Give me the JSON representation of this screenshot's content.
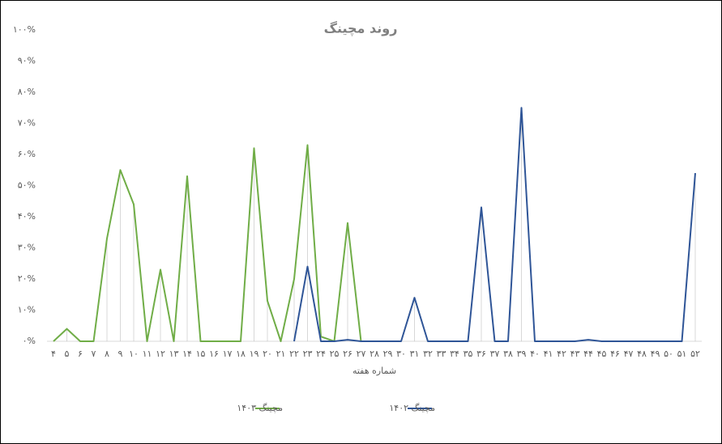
{
  "chart_data": {
    "type": "line",
    "title": "روند مچینگ",
    "x_label": "شماره هفته",
    "categories": [
      "۴",
      "۵",
      "۶",
      "۷",
      "۸",
      "۹",
      "۱۰",
      "۱۱",
      "۱۲",
      "۱۳",
      "۱۴",
      "۱۵",
      "۱۶",
      "۱۷",
      "۱۸",
      "۱۹",
      "۲۰",
      "۲۱",
      "۲۲",
      "۲۳",
      "۲۴",
      "۲۵",
      "۲۶",
      "۲۷",
      "۲۸",
      "۲۹",
      "۳۰",
      "۳۱",
      "۳۲",
      "۳۳",
      "۳۴",
      "۳۵",
      "۳۶",
      "۳۷",
      "۳۸",
      "۳۹",
      "۴۰",
      "۴۱",
      "۴۲",
      "۴۳",
      "۴۴",
      "۴۵",
      "۴۶",
      "۴۷",
      "۴۸",
      "۴۹",
      "۵۰",
      "۵۱",
      "۵۲"
    ],
    "series": [
      {
        "name": "مچینگ ۱۴۰۳",
        "color": "#70ad47",
        "values": [
          0,
          4,
          0,
          0,
          33,
          55,
          44,
          0,
          23,
          0,
          53,
          0,
          0,
          0,
          0,
          62,
          13,
          0,
          20,
          63,
          1.5,
          0,
          38,
          0,
          null,
          null,
          null,
          null,
          null,
          null,
          null,
          null,
          null,
          null,
          null,
          null,
          null,
          null,
          null,
          null,
          null,
          null,
          null,
          null,
          null,
          null,
          null,
          null,
          null
        ]
      },
      {
        "name": "مچینگ ۱۴۰۲",
        "color": "#2f5597",
        "values": [
          null,
          null,
          null,
          null,
          null,
          null,
          null,
          null,
          null,
          null,
          null,
          null,
          null,
          null,
          null,
          null,
          null,
          null,
          0,
          24,
          0,
          0,
          0.5,
          0,
          0,
          0,
          0,
          14,
          0,
          0,
          0,
          0,
          43,
          0,
          0,
          75,
          0,
          0,
          0,
          0,
          0.5,
          0,
          0,
          0,
          0,
          0,
          0,
          0,
          54
        ]
      }
    ],
    "ylim": [
      0,
      100
    ],
    "yticks": [
      {
        "value": 0,
        "label": "۰%"
      },
      {
        "value": 10,
        "label": "۱۰%"
      },
      {
        "value": 20,
        "label": "۲۰%"
      },
      {
        "value": 30,
        "label": "۳۰%"
      },
      {
        "value": 40,
        "label": "۴۰%"
      },
      {
        "value": 50,
        "label": "۵۰%"
      },
      {
        "value": 60,
        "label": "۶۰%"
      },
      {
        "value": 70,
        "label": "۷۰%"
      },
      {
        "value": 80,
        "label": "۸۰%"
      },
      {
        "value": 90,
        "label": "۹۰%"
      },
      {
        "value": 100,
        "label": "۱۰۰%"
      }
    ],
    "drop_lines": true,
    "legend": "bottom"
  }
}
